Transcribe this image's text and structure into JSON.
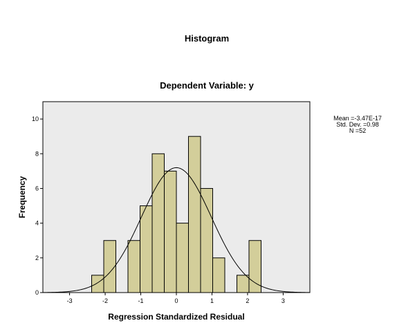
{
  "chart_data": {
    "type": "histogram",
    "title": "Histogram",
    "subtitle": "Dependent Variable: y",
    "xlabel": "Regression Standardized Residual",
    "ylabel": "Frequency",
    "xlim": [
      -3.75,
      3.75
    ],
    "ylim": [
      0,
      11
    ],
    "x_ticks": [
      -3,
      -2,
      -1,
      0,
      1,
      2,
      3
    ],
    "y_ticks": [
      0,
      2,
      4,
      6,
      8,
      10
    ],
    "bin_width": 0.34,
    "bins": [
      {
        "start": -2.38,
        "end": -2.04,
        "count": 1
      },
      {
        "start": -2.04,
        "end": -1.7,
        "count": 3
      },
      {
        "start": -1.36,
        "end": -1.02,
        "count": 3
      },
      {
        "start": -1.02,
        "end": -0.68,
        "count": 5
      },
      {
        "start": -0.68,
        "end": -0.34,
        "count": 8
      },
      {
        "start": -0.34,
        "end": 0.0,
        "count": 7
      },
      {
        "start": 0.0,
        "end": 0.34,
        "count": 4
      },
      {
        "start": 0.34,
        "end": 0.68,
        "count": 9
      },
      {
        "start": 0.68,
        "end": 1.02,
        "count": 6
      },
      {
        "start": 1.02,
        "end": 1.36,
        "count": 2
      },
      {
        "start": 1.7,
        "end": 2.04,
        "count": 1
      },
      {
        "start": 2.04,
        "end": 2.38,
        "count": 3
      }
    ],
    "normal_curve": {
      "mean": 0,
      "sd": 0.98,
      "n": 52
    },
    "stats": [
      "Mean =-3.47E-17",
      "Std. Dev. =0.98",
      "N =52"
    ],
    "colors": {
      "bar_fill": "#d3ce9a",
      "bar_stroke": "#000000",
      "plot_background": "#ebebeb",
      "curve": "#000000"
    },
    "grid": false,
    "legend": "none"
  }
}
